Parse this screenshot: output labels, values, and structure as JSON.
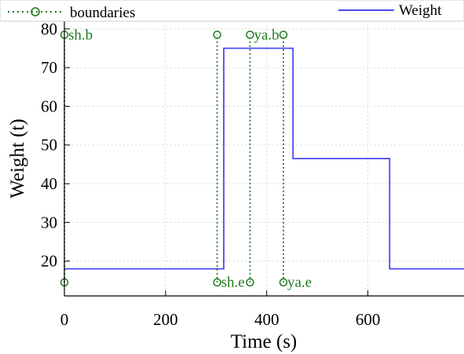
{
  "chart_data": {
    "type": "line",
    "xlabel": "Time (s)",
    "ylabel": "Weight (t)",
    "xlim": [
      0,
      790
    ],
    "ylim": [
      11,
      82
    ],
    "grid": true,
    "legend_placement": "top",
    "x_ticks": [
      0,
      200,
      400,
      600
    ],
    "x_tick_labels": [
      "0",
      "200",
      "400",
      "600"
    ],
    "y_ticks": [
      20,
      30,
      40,
      50,
      60,
      70,
      80
    ],
    "y_tick_labels": [
      "20",
      "30",
      "40",
      "50",
      "60",
      "70",
      "80"
    ],
    "series": [
      {
        "name": "Weight",
        "color": "#4a4af0",
        "style": "step",
        "x": [
          0,
          315,
          315,
          452,
          452,
          643,
          643,
          790
        ],
        "y": [
          18,
          18,
          75,
          75,
          46.5,
          46.5,
          18,
          18
        ]
      },
      {
        "name": "boundaries",
        "color": "#1e7a1e",
        "style": "dotted-vertical-with-circle-markers",
        "lines": [
          {
            "x": 0,
            "y_bottom": 14.5,
            "y_top": 78.5,
            "label": "sh.b",
            "label_at": "top"
          },
          {
            "x": 302,
            "y_bottom": 14.5,
            "y_top": 78.5,
            "label": "sh.e",
            "label_at": "bottom"
          },
          {
            "x": 367,
            "y_bottom": 14.5,
            "y_top": 78.5,
            "label": "ya.b",
            "label_at": "top"
          },
          {
            "x": 433,
            "y_bottom": 14.5,
            "y_top": 78.5,
            "label": "ya.e",
            "label_at": "bottom"
          }
        ]
      }
    ]
  },
  "legend": {
    "items": [
      {
        "label": "boundaries",
        "color": "#1e7a1e"
      },
      {
        "label": "Weight",
        "color": "#4a4af0"
      }
    ]
  }
}
